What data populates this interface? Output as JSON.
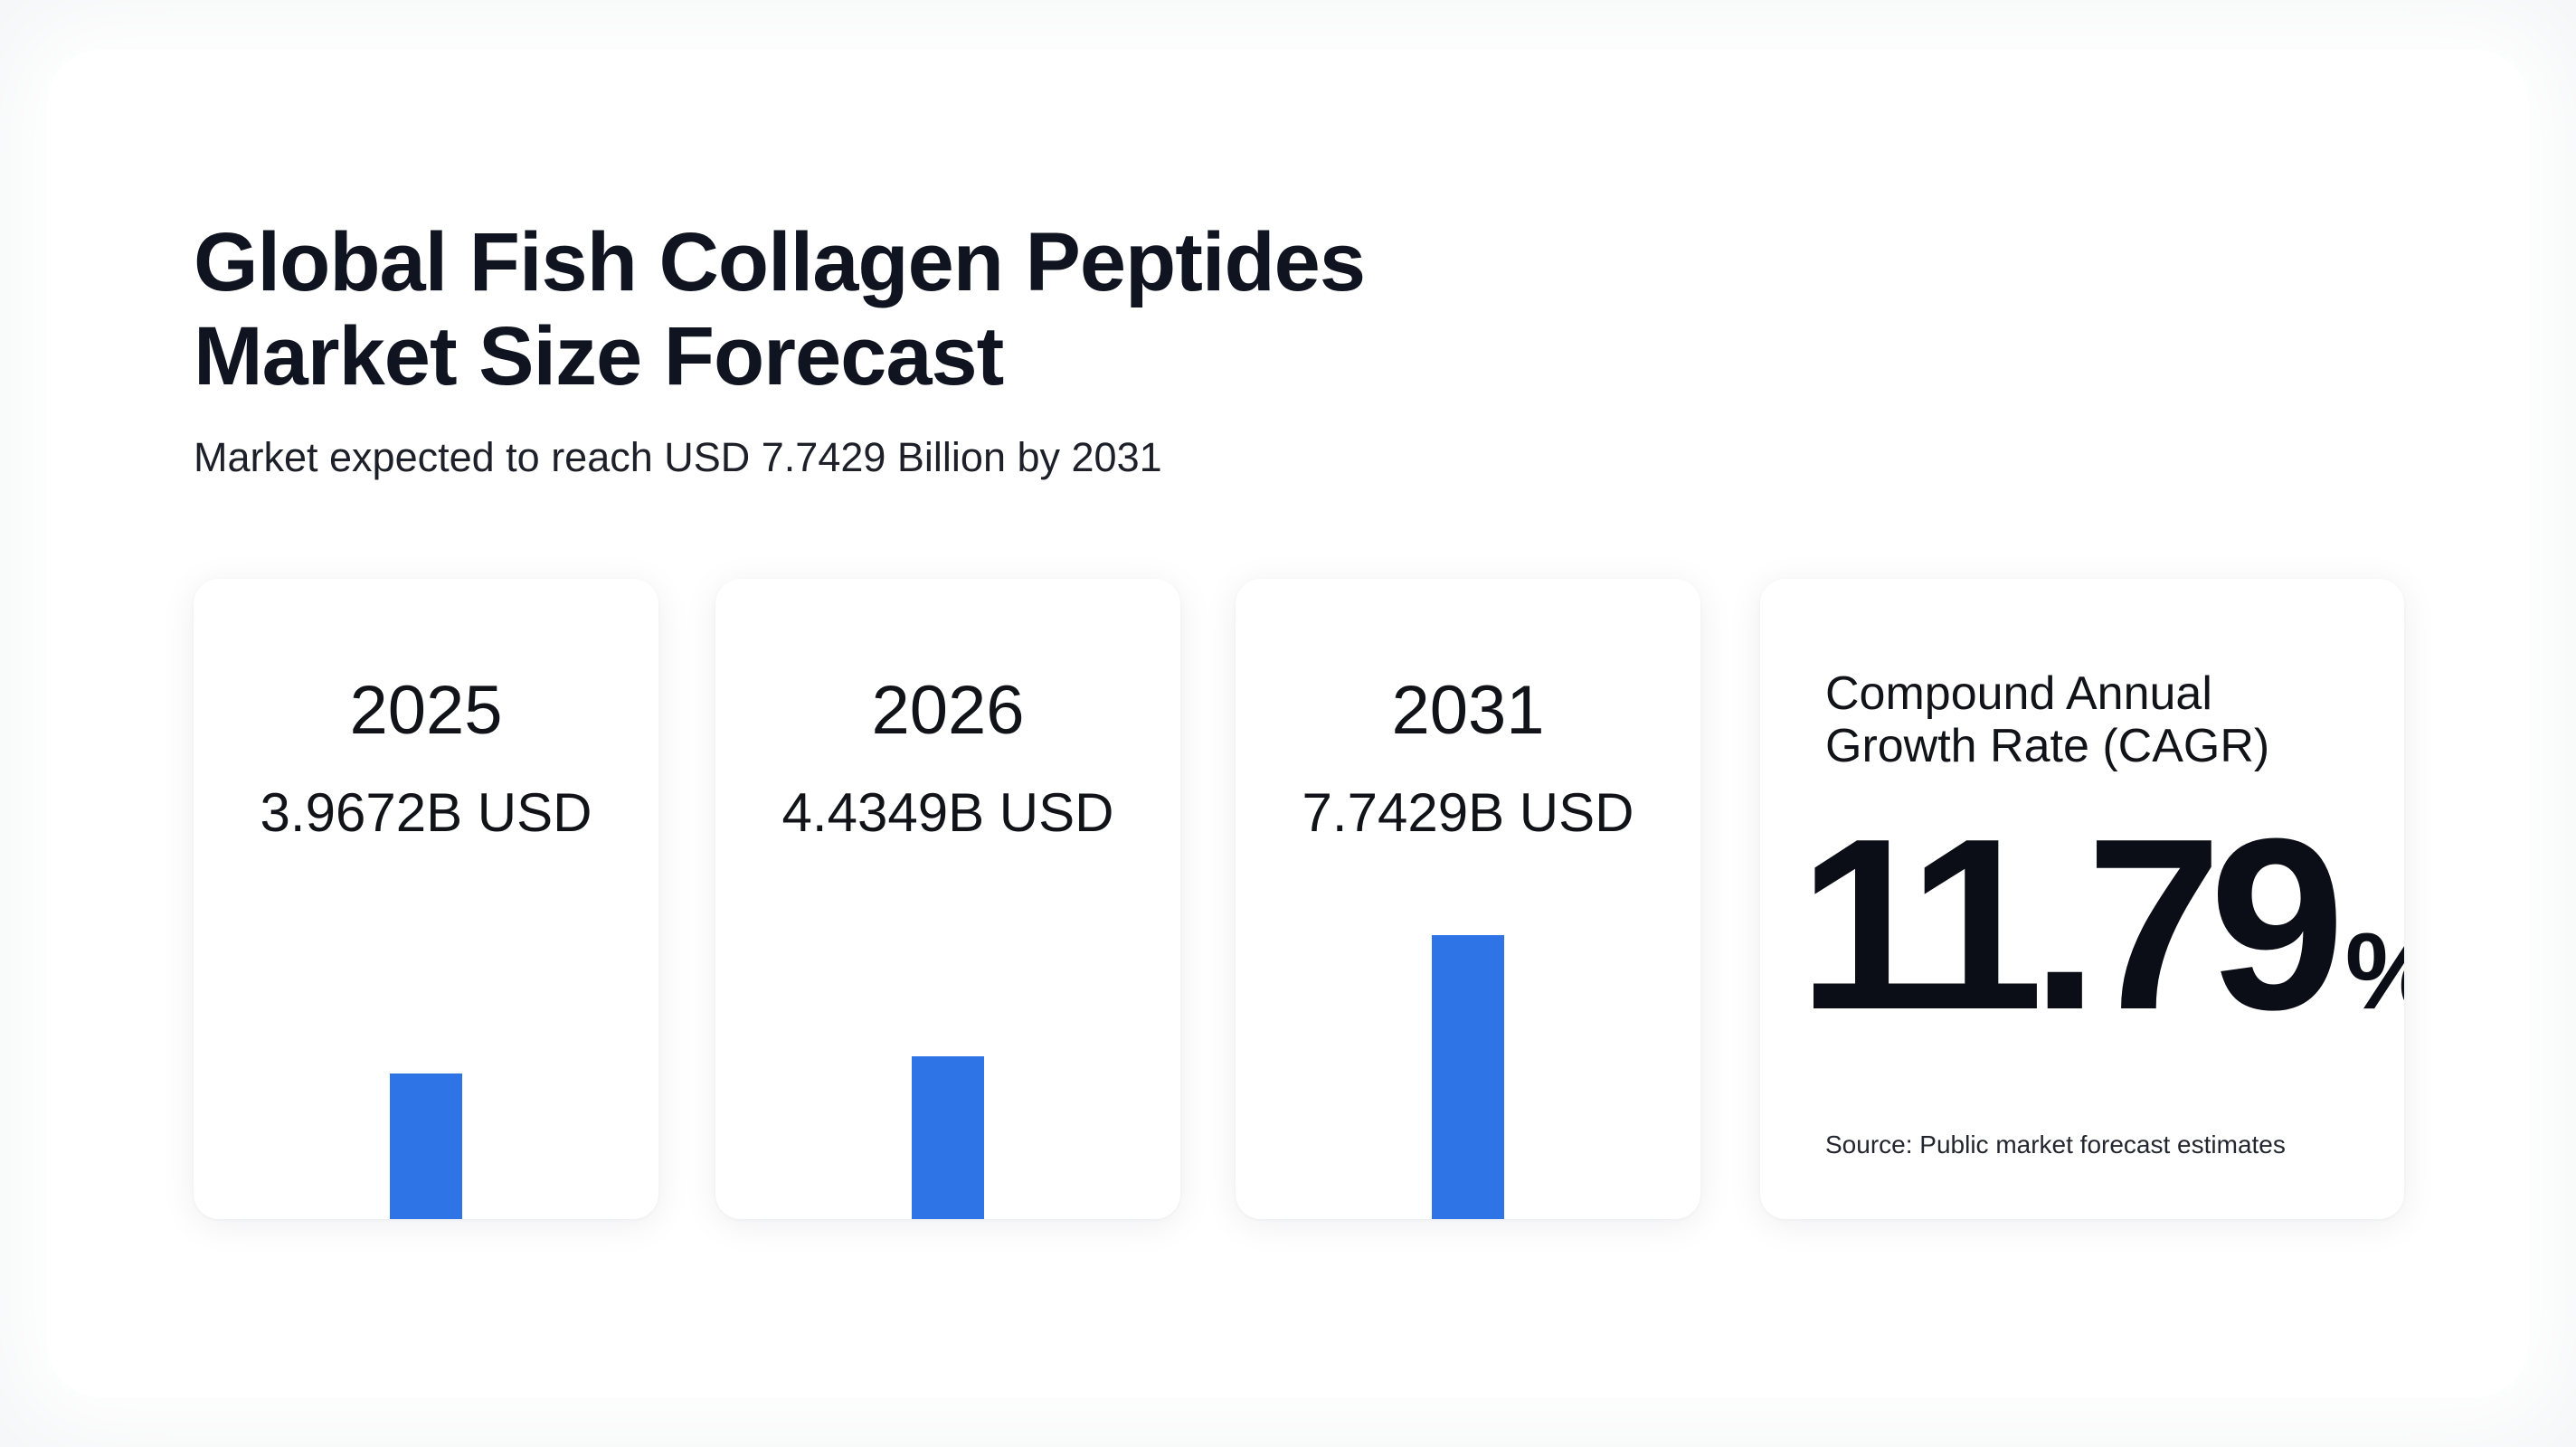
{
  "header": {
    "title_line1": "Global Fish Collagen Peptides",
    "title_line2": "Market Size Forecast",
    "subtitle": "Market expected to reach USD 7.7429 Billion by 2031"
  },
  "colors": {
    "bar": "#2f74e6",
    "text": "#111318",
    "background": "#ffffff"
  },
  "chart_data": {
    "type": "bar",
    "categories": [
      "2025",
      "2026",
      "2031"
    ],
    "values": [
      3.9672,
      4.4349,
      7.7429
    ],
    "value_labels": [
      "3.9672B USD",
      "4.4349B USD",
      "7.7429B USD"
    ],
    "unit": "B USD"
  },
  "cagr": {
    "label_line1": "Compound Annual",
    "label_line2": "Growth Rate (CAGR)",
    "value": "11.79",
    "suffix": "%",
    "source": "Source: Public market forecast estimates"
  }
}
